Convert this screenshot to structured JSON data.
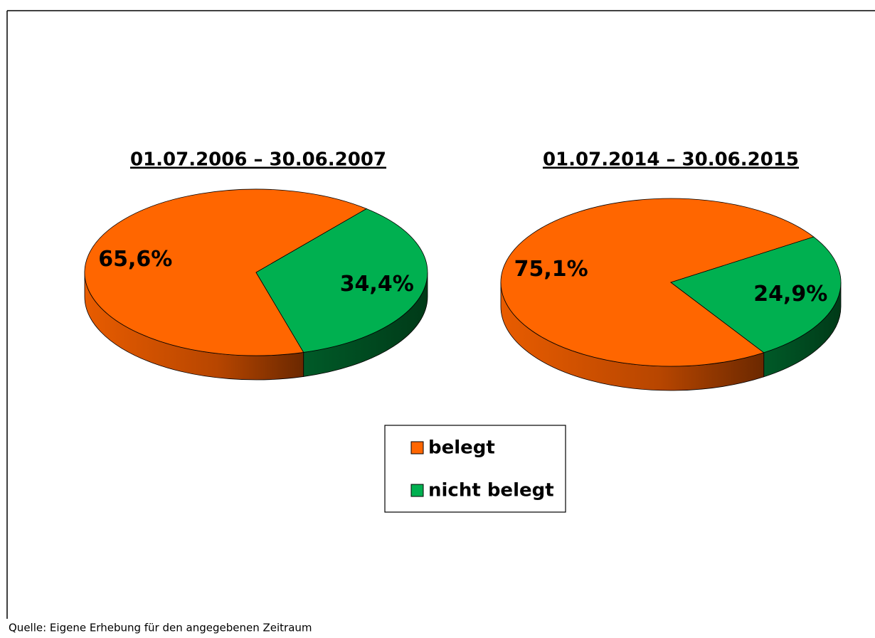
{
  "chart_data": [
    {
      "type": "pie",
      "title": "01.07.2006 – 30.06.2007",
      "categories": [
        "belegt",
        "nicht belegt"
      ],
      "values": [
        65.6,
        34.4
      ],
      "value_labels": [
        "65,6%",
        "34,4%"
      ],
      "colors": [
        "#ff6600",
        "#00b050"
      ]
    },
    {
      "type": "pie",
      "title": "01.07.2014 – 30.06.2015",
      "categories": [
        "belegt",
        "nicht belegt"
      ],
      "values": [
        75.1,
        24.9
      ],
      "value_labels": [
        "75,1%",
        "24,9%"
      ],
      "colors": [
        "#ff6600",
        "#00b050"
      ]
    }
  ],
  "source": "Quelle: Eigene Erhebung für den angegebenen Zeitraum"
}
